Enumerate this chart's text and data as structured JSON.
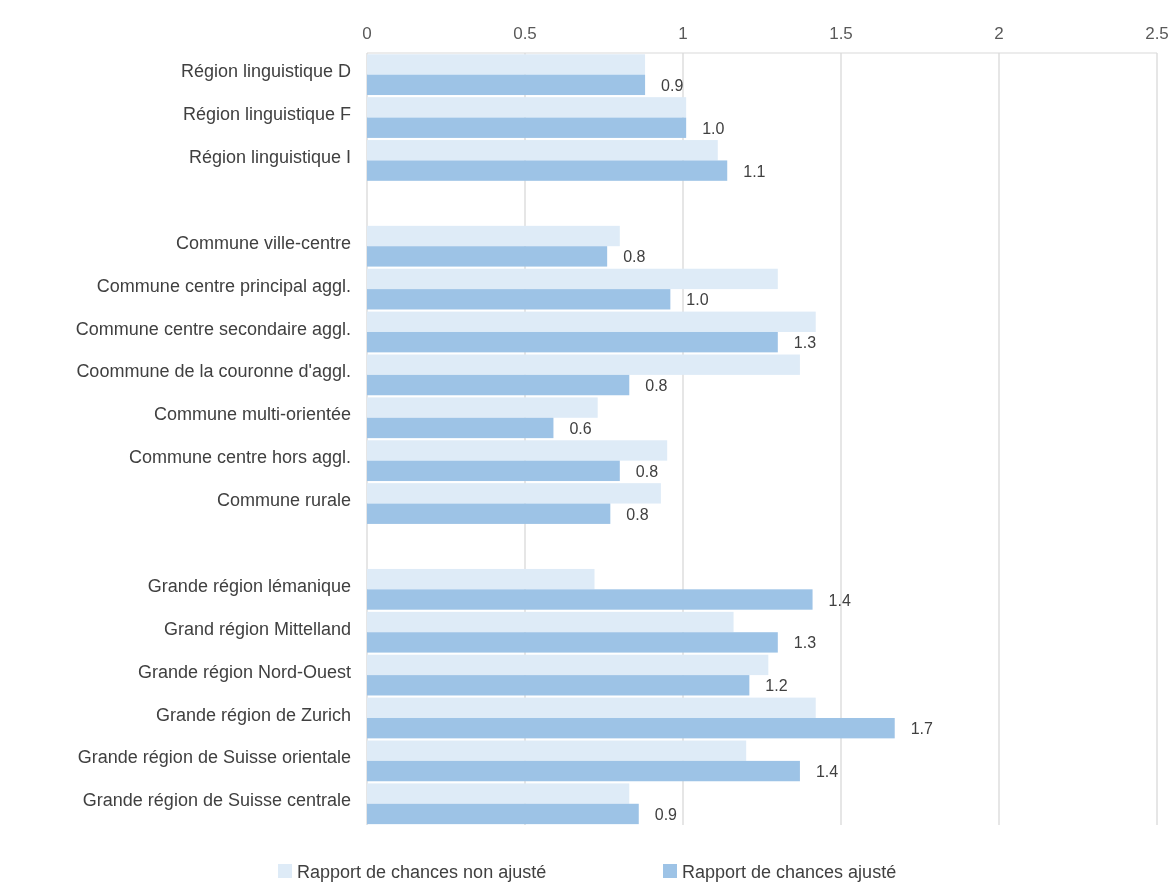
{
  "chart_data": {
    "type": "bar",
    "orientation": "horizontal",
    "categories": [
      "Région linguistique D",
      "Région linguistique F",
      "Région linguistique I",
      null,
      "Commune ville-centre",
      "Commune centre principal aggl.",
      "Commune centre secondaire aggl.",
      "Coommune de la couronne d'aggl.",
      "Commune multi-orientée",
      "Commune centre hors aggl.",
      "Commune rurale",
      null,
      "Grande région lémanique",
      "Grand région Mittelland",
      "Grande région Nord-Ouest",
      "Grande région de Zurich",
      "Grande région de Suisse orientale",
      "Grande région de Suisse centrale"
    ],
    "series": [
      {
        "name": "Rapport de chances non ajusté",
        "color": "#deebf7",
        "values": [
          0.88,
          1.01,
          1.11,
          null,
          0.8,
          1.3,
          1.42,
          1.37,
          0.73,
          0.95,
          0.93,
          null,
          0.72,
          1.16,
          1.27,
          1.42,
          1.2,
          0.83
        ]
      },
      {
        "name": "Rapport de chances ajusté",
        "color": "#9dc3e6",
        "values": [
          0.88,
          1.01,
          1.14,
          null,
          0.76,
          0.96,
          1.3,
          0.83,
          0.59,
          0.8,
          0.77,
          null,
          1.41,
          1.3,
          1.21,
          1.67,
          1.37,
          0.86
        ],
        "value_labels": [
          "0.9",
          "1.0",
          "1.1",
          null,
          "0.8",
          "1.0",
          "1.3",
          "0.8",
          "0.6",
          "0.8",
          "0.8",
          null,
          "1.4",
          "1.3",
          "1.2",
          "1.7",
          "1.4",
          "0.9"
        ]
      }
    ],
    "xlim": [
      0,
      2.5
    ],
    "xticks": [
      0,
      {
        "value": 0.5,
        "label": "0.5"
      },
      1,
      {
        "value": 1.5,
        "label": "1.5"
      },
      2,
      {
        "value": 2.5,
        "label": "2.5"
      }
    ],
    "grid": "x",
    "legend": "bottom"
  }
}
